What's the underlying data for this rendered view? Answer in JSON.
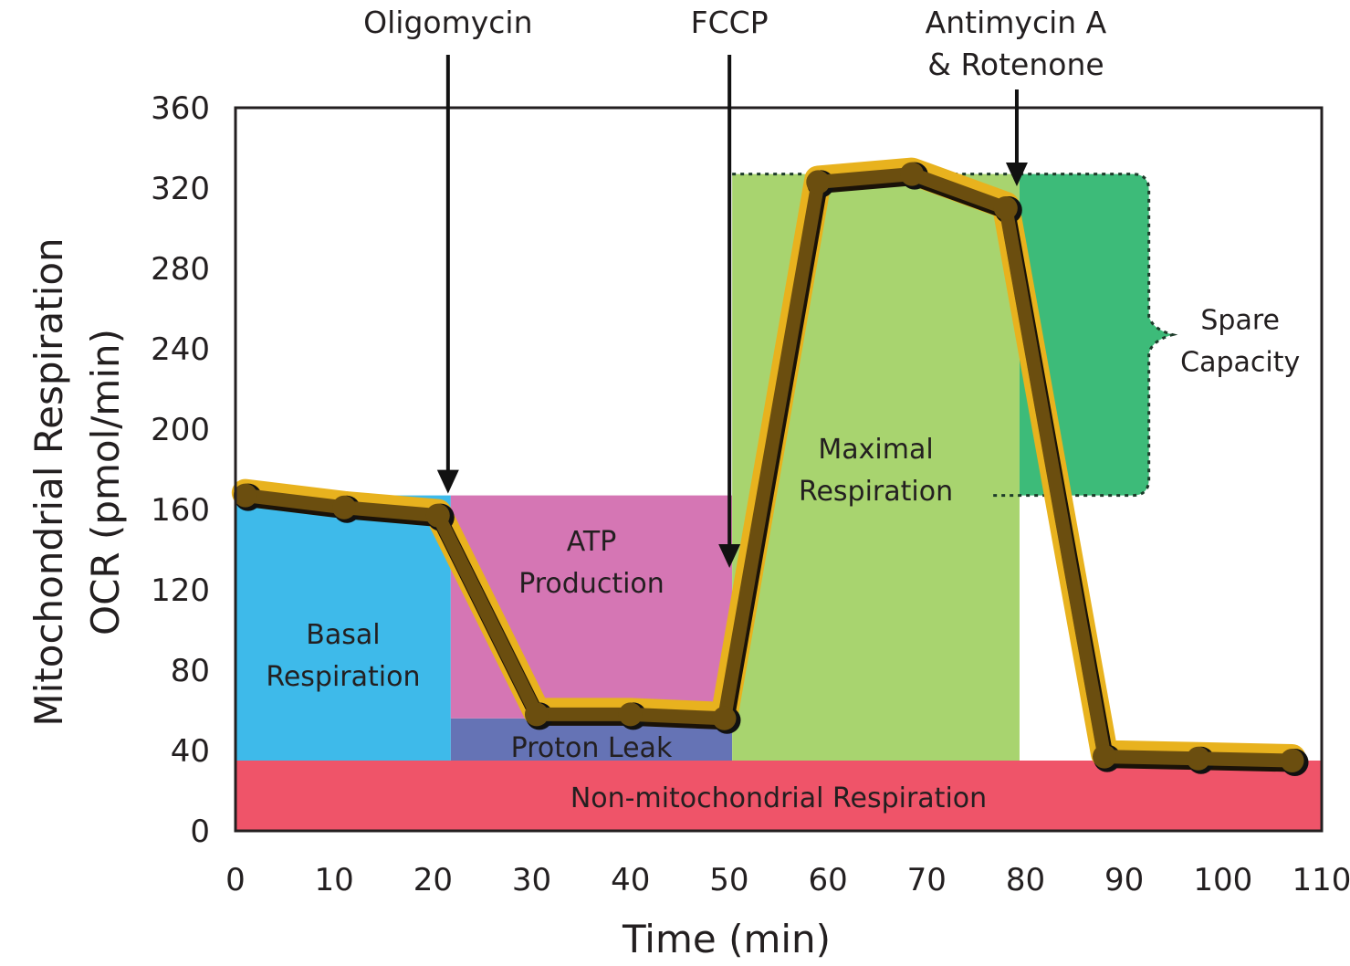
{
  "chart_data": {
    "type": "line",
    "title": "",
    "xlabel": "Time (min)",
    "ylabel_line1": "Mitochondrial Respiration",
    "ylabel_line2": "OCR (pmol/min)",
    "xlim": [
      0,
      110
    ],
    "ylim": [
      0,
      360
    ],
    "x_ticks": [
      0,
      10,
      20,
      30,
      40,
      50,
      60,
      70,
      80,
      90,
      100,
      110
    ],
    "x_tick_labels": [
      "0",
      "10",
      "20",
      "30",
      "40",
      "50",
      "60",
      "70",
      "80",
      "90",
      "100",
      "110"
    ],
    "y_ticks": [
      0,
      40,
      80,
      120,
      160,
      200,
      240,
      280,
      320,
      360
    ],
    "y_tick_labels": [
      "0",
      "40",
      "80",
      "120",
      "160",
      "200",
      "240",
      "280",
      "320",
      "360"
    ],
    "grid": false,
    "series": [
      {
        "name": "OCR",
        "x": [
          1,
          11,
          20.5,
          30.5,
          40,
          49.5,
          59,
          68.5,
          78,
          88,
          97.5,
          107
        ],
        "y": [
          167,
          161,
          157,
          58,
          58,
          56,
          323,
          327,
          310,
          37,
          36,
          35
        ],
        "line_color": "#6b4e0f",
        "halo_color": "#e8b21e",
        "marker_color": "#111111"
      }
    ],
    "regions": [
      {
        "name": "non-mitochondrial",
        "label": "Non-mitochondrial Respiration",
        "x0": 0,
        "x1": 110,
        "y0": 0,
        "y1": 35,
        "color": "#ef5469"
      },
      {
        "name": "basal",
        "label_lines": [
          "Basal",
          "Respiration"
        ],
        "x0": 0,
        "x1": 21.8,
        "y0": 35,
        "y1": 167,
        "color": "#3ebaea"
      },
      {
        "name": "proton-leak",
        "label": "Proton Leak",
        "x0": 21.8,
        "x1": 50.3,
        "y0": 35,
        "y1": 56,
        "color": "#6573b5"
      },
      {
        "name": "atp-production",
        "label_lines": [
          "ATP",
          "Production"
        ],
        "x0": 21.8,
        "x1": 50.3,
        "y0": 56,
        "y1": 167,
        "color": "#d576b4"
      },
      {
        "name": "maximal",
        "label_lines": [
          "Maximal",
          "Respiration"
        ],
        "x0": 50.3,
        "x1": 79.4,
        "y0": 35,
        "y1": 327,
        "color": "#a8d46f"
      },
      {
        "name": "spare-capacity",
        "label_lines": [
          "Spare",
          "Capacity"
        ],
        "x0": 79.4,
        "x1": 92.5,
        "y0": 167,
        "y1": 327,
        "color": "#3dbb79"
      }
    ],
    "annotations": [
      {
        "name": "oligomycin",
        "label_lines": [
          "Oligomycin"
        ],
        "x": 21.8,
        "y_tip": 167
      },
      {
        "name": "fccp",
        "label_lines": [
          "FCCP"
        ],
        "x": 50.3,
        "y_tip": 130
      },
      {
        "name": "antimycin-rotenone",
        "label_lines": [
          "Antimycin A",
          "& Rotenone"
        ],
        "x": 79.4,
        "y_tip": 320
      }
    ]
  }
}
